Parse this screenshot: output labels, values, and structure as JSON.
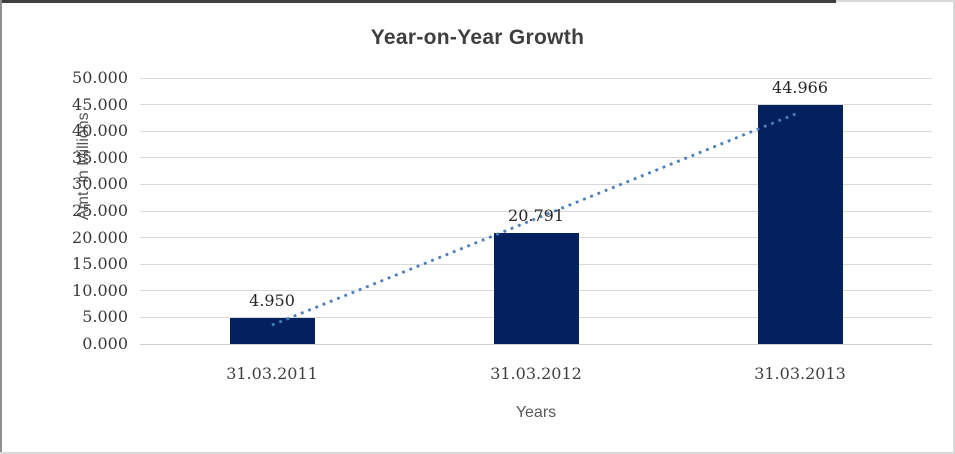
{
  "chart_data": {
    "type": "bar",
    "title": "Year-on-Year Growth",
    "categories": [
      "31.03.2011",
      "31.03.2012",
      "31.03.2013"
    ],
    "values": [
      4.95,
      20.791,
      44.966
    ],
    "data_labels": [
      "4.950",
      "20.791",
      "44.966"
    ],
    "xlabel": "Years",
    "ylabel": "Amt. in Millions",
    "ylim": [
      0,
      50
    ],
    "ytick_step": 5,
    "ytick_labels": [
      "0.000",
      "5.000",
      "10.000",
      "15.000",
      "20.000",
      "25.000",
      "30.000",
      "35.000",
      "40.000",
      "45.000",
      "50.000"
    ],
    "grid": true,
    "legend": "none",
    "bar_color": "#03215f",
    "gridline_color": "#d9d9d9",
    "trendline": {
      "type": "linear",
      "style": "dotted",
      "color": "#4a7ebb"
    }
  }
}
